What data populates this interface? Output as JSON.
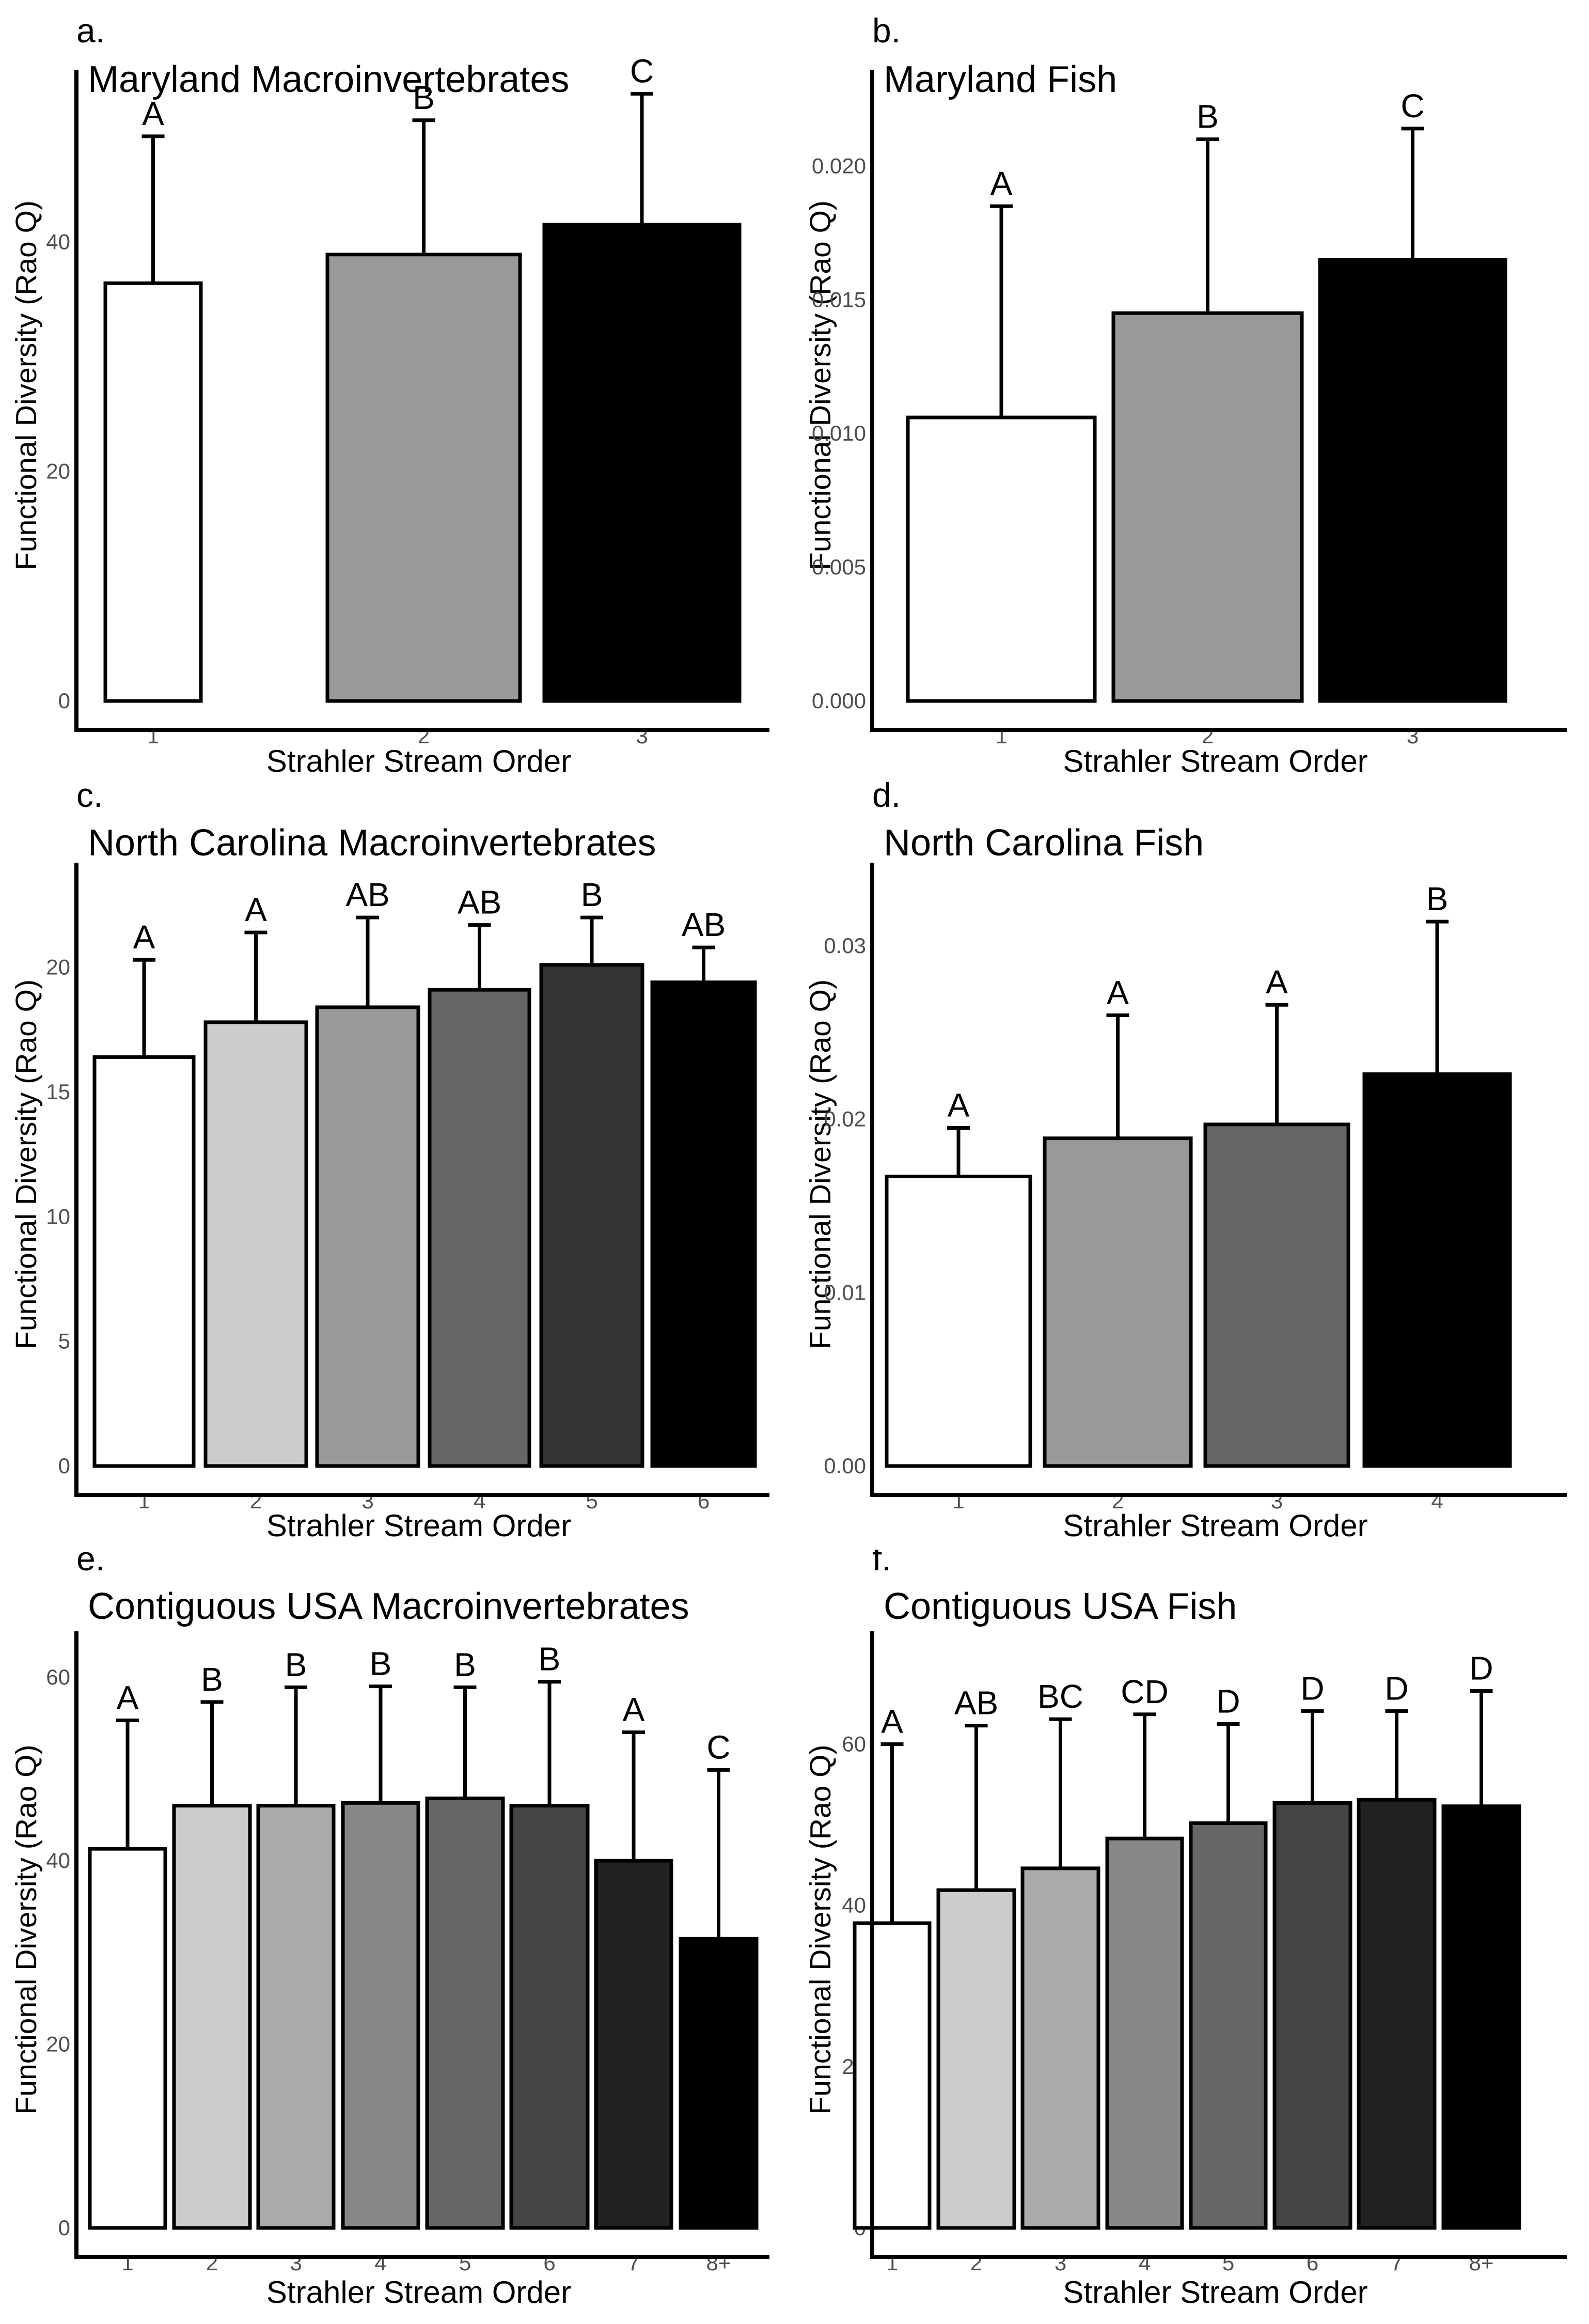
{
  "chart_data": [
    {
      "panel_letter": "a.",
      "title": "Maryland Macroinvertebrates",
      "type": "bar",
      "xlabel": "Strahler Stream Order",
      "ylabel": "Functional Diversity (Rao Q)",
      "categories": [
        "1",
        "2",
        "3"
      ],
      "values": [
        36.4,
        38.9,
        41.5
      ],
      "error_upper": [
        49.2,
        50.6,
        52.9
      ],
      "letters": [
        "A",
        "B",
        "C"
      ],
      "colors": [
        "#ffffff",
        "#999999",
        "#000000"
      ],
      "ylim": [
        0,
        55
      ],
      "yticks": [
        0,
        20,
        40
      ],
      "ytick_labels": [
        "0",
        "20",
        "40"
      ]
    },
    {
      "panel_letter": "b.",
      "title": "Maryland Fish",
      "type": "bar",
      "xlabel": "Strahler Stream Order",
      "ylabel": "Functional Diversity (Rao Q)",
      "categories": [
        "1",
        "2",
        "3"
      ],
      "values": [
        0.0106,
        0.0145,
        0.0165
      ],
      "error_upper": [
        0.0185,
        0.021,
        0.0214
      ],
      "letters": [
        "A",
        "B",
        "C"
      ],
      "colors": [
        "#ffffff",
        "#999999",
        "#000000"
      ],
      "ylim": [
        0,
        0.0236
      ],
      "yticks": [
        0,
        0.005,
        0.01,
        0.015,
        0.02
      ],
      "ytick_labels": [
        "0.000",
        "0.005",
        "0.010",
        "0.015",
        "0.020"
      ]
    },
    {
      "panel_letter": "c.",
      "title": "North Carolina Macroinvertebrates",
      "type": "bar",
      "xlabel": "Strahler Stream Order",
      "ylabel": "Functional Diversity (Rao Q)",
      "categories": [
        "1",
        "2",
        "3",
        "4",
        "5",
        "6"
      ],
      "values": [
        16.4,
        17.8,
        18.4,
        19.1,
        20.1,
        19.4
      ],
      "error_upper": [
        20.3,
        21.4,
        22.0,
        21.7,
        22.0,
        20.8
      ],
      "letters": [
        "A",
        "A",
        "AB",
        "AB",
        "B",
        "AB"
      ],
      "colors": [
        "#ffffff",
        "#cccccc",
        "#999999",
        "#666666",
        "#333333",
        "#000000"
      ],
      "ylim": [
        0,
        24.2
      ],
      "yticks": [
        0,
        5,
        10,
        15,
        20
      ],
      "ytick_labels": [
        "0",
        "5",
        "10",
        "15",
        "20"
      ]
    },
    {
      "panel_letter": "d.",
      "title": "North Carolina Fish",
      "type": "bar",
      "xlabel": "Strahler Stream Order",
      "ylabel": "Functional Diversity (Rao Q)",
      "categories": [
        "1",
        "2",
        "3",
        "4"
      ],
      "values": [
        0.0167,
        0.0189,
        0.0197,
        0.0226
      ],
      "error_upper": [
        0.0195,
        0.026,
        0.0266,
        0.0314
      ],
      "letters": [
        "A",
        "A",
        "A",
        "B"
      ],
      "colors": [
        "#ffffff",
        "#999999",
        "#666666",
        "#000000"
      ],
      "ylim": [
        0,
        0.0348
      ],
      "yticks": [
        0,
        0.01,
        0.02,
        0.03
      ],
      "ytick_labels": [
        "0.00",
        "0.01",
        "0.02",
        "0.03"
      ]
    },
    {
      "panel_letter": "e.",
      "title": "Contiguous USA Macroinvertebrates",
      "type": "bar",
      "xlabel": "Strahler Stream Order",
      "ylabel": "Functional Diversity (Rao Q)",
      "categories": [
        "1",
        "2",
        "3",
        "4",
        "5",
        "6",
        "7",
        "8+"
      ],
      "values": [
        41.3,
        46.0,
        46.0,
        46.3,
        46.8,
        46.0,
        40.0,
        31.5
      ],
      "error_upper": [
        55.3,
        57.3,
        58.9,
        59.0,
        58.9,
        59.5,
        54.0,
        49.9
      ],
      "letters": [
        "A",
        "B",
        "B",
        "B",
        "B",
        "B",
        "A",
        "C"
      ],
      "colors": [
        "#ffffff",
        "#cccccc",
        "#aaaaaa",
        "#888888",
        "#666666",
        "#444444",
        "#222222",
        "#000000"
      ],
      "ylim": [
        0,
        65
      ],
      "yticks": [
        0,
        20,
        40,
        60
      ],
      "ytick_labels": [
        "0",
        "20",
        "40",
        "60"
      ]
    },
    {
      "panel_letter": "f.",
      "title": "Contiguous USA Fish",
      "type": "bar",
      "xlabel": "Strahler Stream Order",
      "ylabel": "Functional Diversity (Rao Q)",
      "categories": [
        "1",
        "2",
        "3",
        "4",
        "5",
        "6",
        "7",
        "8+"
      ],
      "values": [
        37.8,
        41.9,
        44.6,
        48.3,
        50.2,
        52.7,
        53.1,
        52.3
      ],
      "error_upper": [
        60.0,
        62.3,
        63.1,
        63.7,
        62.5,
        64.1,
        64.1,
        66.6
      ],
      "letters": [
        "A",
        "AB",
        "BC",
        "CD",
        "D",
        "D",
        "D",
        "D"
      ],
      "colors": [
        "#ffffff",
        "#cccccc",
        "#aaaaaa",
        "#888888",
        "#666666",
        "#444444",
        "#222222",
        "#000000"
      ],
      "ylim": [
        0,
        74
      ],
      "yticks": [
        0,
        20,
        40,
        60
      ],
      "ytick_labels": [
        "0",
        "20",
        "40",
        "60"
      ]
    }
  ]
}
